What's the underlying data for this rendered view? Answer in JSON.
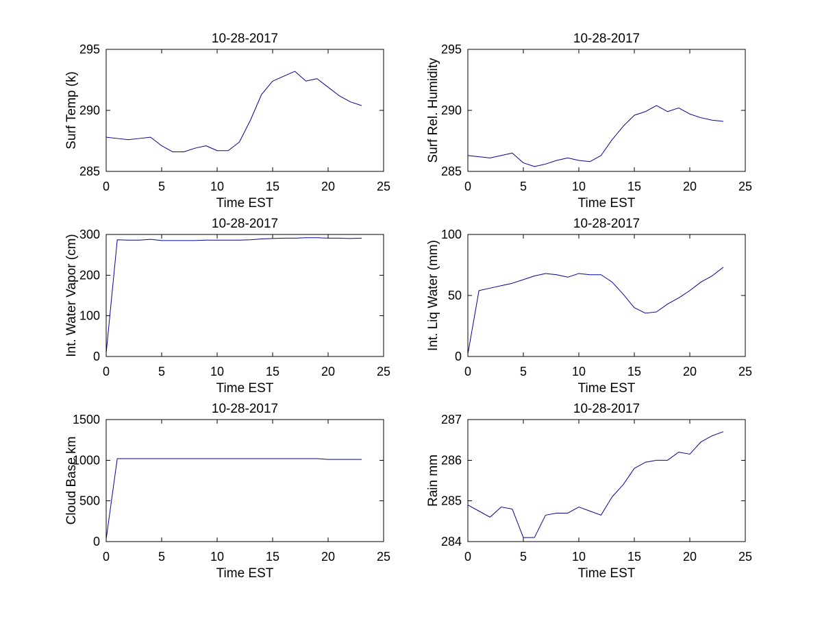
{
  "figure": {
    "background": "#ffffff",
    "line_color": "#000099",
    "axis_color": "#000000"
  },
  "chart_data": [
    {
      "type": "line",
      "title": "10-28-2017",
      "xlabel": "Time EST",
      "ylabel": "Surf Temp (k)",
      "xlim": [
        0,
        25
      ],
      "ylim": [
        285,
        295
      ],
      "xticks": [
        0,
        5,
        10,
        15,
        20,
        25
      ],
      "yticks": [
        285,
        290,
        295
      ],
      "grid": false,
      "legend": null,
      "x": [
        0,
        1,
        2,
        3,
        4,
        5,
        6,
        7,
        8,
        9,
        10,
        11,
        12,
        13,
        14,
        15,
        16,
        17,
        18,
        19,
        20,
        21,
        22,
        23
      ],
      "y": [
        287.8,
        287.7,
        287.6,
        287.7,
        287.8,
        287.1,
        286.6,
        286.6,
        286.9,
        287.1,
        286.7,
        286.7,
        287.4,
        289.2,
        291.3,
        292.4,
        292.8,
        293.2,
        292.4,
        292.6,
        291.9,
        291.2,
        290.7,
        290.4
      ]
    },
    {
      "type": "line",
      "title": "10-28-2017",
      "xlabel": "Time EST",
      "ylabel": "Surf Rel. Humidity",
      "xlim": [
        0,
        25
      ],
      "ylim": [
        285,
        295
      ],
      "xticks": [
        0,
        5,
        10,
        15,
        20,
        25
      ],
      "yticks": [
        285,
        290,
        295
      ],
      "grid": false,
      "legend": null,
      "x": [
        0,
        1,
        2,
        3,
        4,
        5,
        6,
        7,
        8,
        9,
        10,
        11,
        12,
        13,
        14,
        15,
        16,
        17,
        18,
        19,
        20,
        21,
        22,
        23
      ],
      "y": [
        286.3,
        286.2,
        286.1,
        286.3,
        286.5,
        285.7,
        285.4,
        285.6,
        285.9,
        286.1,
        285.9,
        285.8,
        286.3,
        287.6,
        288.7,
        289.6,
        289.9,
        290.4,
        289.9,
        290.2,
        289.7,
        289.4,
        289.2,
        289.1
      ]
    },
    {
      "type": "line",
      "title": "10-28-2017",
      "xlabel": "Time EST",
      "ylabel": "Int. Water Vapor (cm)",
      "xlim": [
        0,
        25
      ],
      "ylim": [
        0,
        300
      ],
      "xticks": [
        0,
        5,
        10,
        15,
        20,
        25
      ],
      "yticks": [
        0,
        100,
        200,
        300
      ],
      "grid": false,
      "legend": null,
      "x": [
        0,
        1,
        2,
        3,
        4,
        5,
        6,
        7,
        8,
        9,
        10,
        11,
        12,
        13,
        14,
        15,
        16,
        17,
        18,
        19,
        20,
        21,
        22,
        23
      ],
      "y": [
        8,
        287,
        286,
        286,
        288,
        285,
        285,
        285,
        285,
        286,
        286,
        286,
        286,
        287,
        289,
        290,
        291,
        291,
        292,
        292,
        291,
        291,
        290,
        291
      ]
    },
    {
      "type": "line",
      "title": "10-28-2017",
      "xlabel": "Time EST",
      "ylabel": "Int. Liq Water (mm)",
      "xlim": [
        0,
        25
      ],
      "ylim": [
        0,
        100
      ],
      "xticks": [
        0,
        5,
        10,
        15,
        20,
        25
      ],
      "yticks": [
        0,
        50,
        100
      ],
      "grid": false,
      "legend": null,
      "x": [
        0,
        1,
        2,
        3,
        4,
        5,
        6,
        7,
        8,
        9,
        10,
        11,
        12,
        13,
        14,
        15,
        16,
        17,
        18,
        19,
        20,
        21,
        22,
        23
      ],
      "y": [
        2,
        54,
        56,
        58,
        60,
        63,
        66,
        68,
        67,
        65,
        68,
        67,
        67,
        61,
        51,
        40,
        35.5,
        36.5,
        43,
        48,
        54,
        61,
        66,
        73
      ]
    },
    {
      "type": "line",
      "title": "10-28-2017",
      "xlabel": "Time EST",
      "ylabel": "Cloud Base km",
      "xlim": [
        0,
        25
      ],
      "ylim": [
        0,
        1500
      ],
      "xticks": [
        0,
        5,
        10,
        15,
        20,
        25
      ],
      "yticks": [
        0,
        500,
        1000,
        1500
      ],
      "grid": false,
      "legend": null,
      "x": [
        0,
        1,
        2,
        3,
        4,
        5,
        6,
        7,
        8,
        9,
        10,
        11,
        12,
        13,
        14,
        15,
        16,
        17,
        18,
        19,
        20,
        21,
        22,
        23
      ],
      "y": [
        30,
        1020,
        1020,
        1020,
        1020,
        1020,
        1020,
        1020,
        1020,
        1020,
        1020,
        1020,
        1020,
        1020,
        1020,
        1020,
        1020,
        1020,
        1020,
        1020,
        1010,
        1010,
        1010,
        1010
      ]
    },
    {
      "type": "line",
      "title": "10-28-2017",
      "xlabel": "Time EST",
      "ylabel": "Rain mm",
      "xlim": [
        0,
        25
      ],
      "ylim": [
        284,
        287
      ],
      "xticks": [
        0,
        5,
        10,
        15,
        20,
        25
      ],
      "yticks": [
        284,
        285,
        286,
        287
      ],
      "grid": false,
      "legend": null,
      "x": [
        0,
        1,
        2,
        3,
        4,
        5,
        6,
        7,
        8,
        9,
        10,
        11,
        12,
        13,
        14,
        15,
        16,
        17,
        18,
        19,
        20,
        21,
        22,
        23
      ],
      "y": [
        284.9,
        284.75,
        284.6,
        284.85,
        284.8,
        284.1,
        284.1,
        284.65,
        284.7,
        284.7,
        284.85,
        284.75,
        284.65,
        285.1,
        285.4,
        285.8,
        285.95,
        286.0,
        286.0,
        286.2,
        286.15,
        286.45,
        286.6,
        286.7
      ]
    }
  ]
}
